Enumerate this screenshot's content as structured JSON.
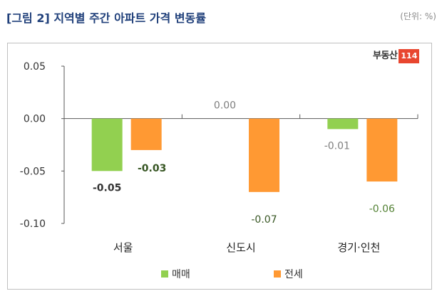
{
  "header": {
    "title": "[그림 2] 지역별 주간 아파트 가격 변동률",
    "unit": "(단위: %)"
  },
  "logo": {
    "text": "부동산",
    "number": "114"
  },
  "chart_data": {
    "type": "bar",
    "categories": [
      "서울",
      "신도시",
      "경기·인천"
    ],
    "series": [
      {
        "name": "매매",
        "values": [
          -0.05,
          0.0,
          -0.01
        ],
        "color": "#92d050",
        "labels": [
          "-0.05",
          "0.00",
          "-0.01"
        ]
      },
      {
        "name": "전세",
        "values": [
          -0.03,
          -0.07,
          -0.06
        ],
        "color": "#ff9933",
        "labels": [
          "-0.03",
          "-0.07",
          "-0.06"
        ]
      }
    ],
    "ylim": [
      -0.1,
      0.05
    ],
    "yticks": [
      "0.05",
      "0.00",
      "-0.05",
      "-0.10"
    ],
    "ytick_values": [
      0.05,
      0.0,
      -0.05,
      -0.1
    ],
    "label_colors": [
      "#333333",
      "#375623",
      "#7f7f7f",
      "#375623",
      "#7f7f7f",
      "#548235"
    ],
    "grid": false,
    "legend_position": "bottom"
  }
}
